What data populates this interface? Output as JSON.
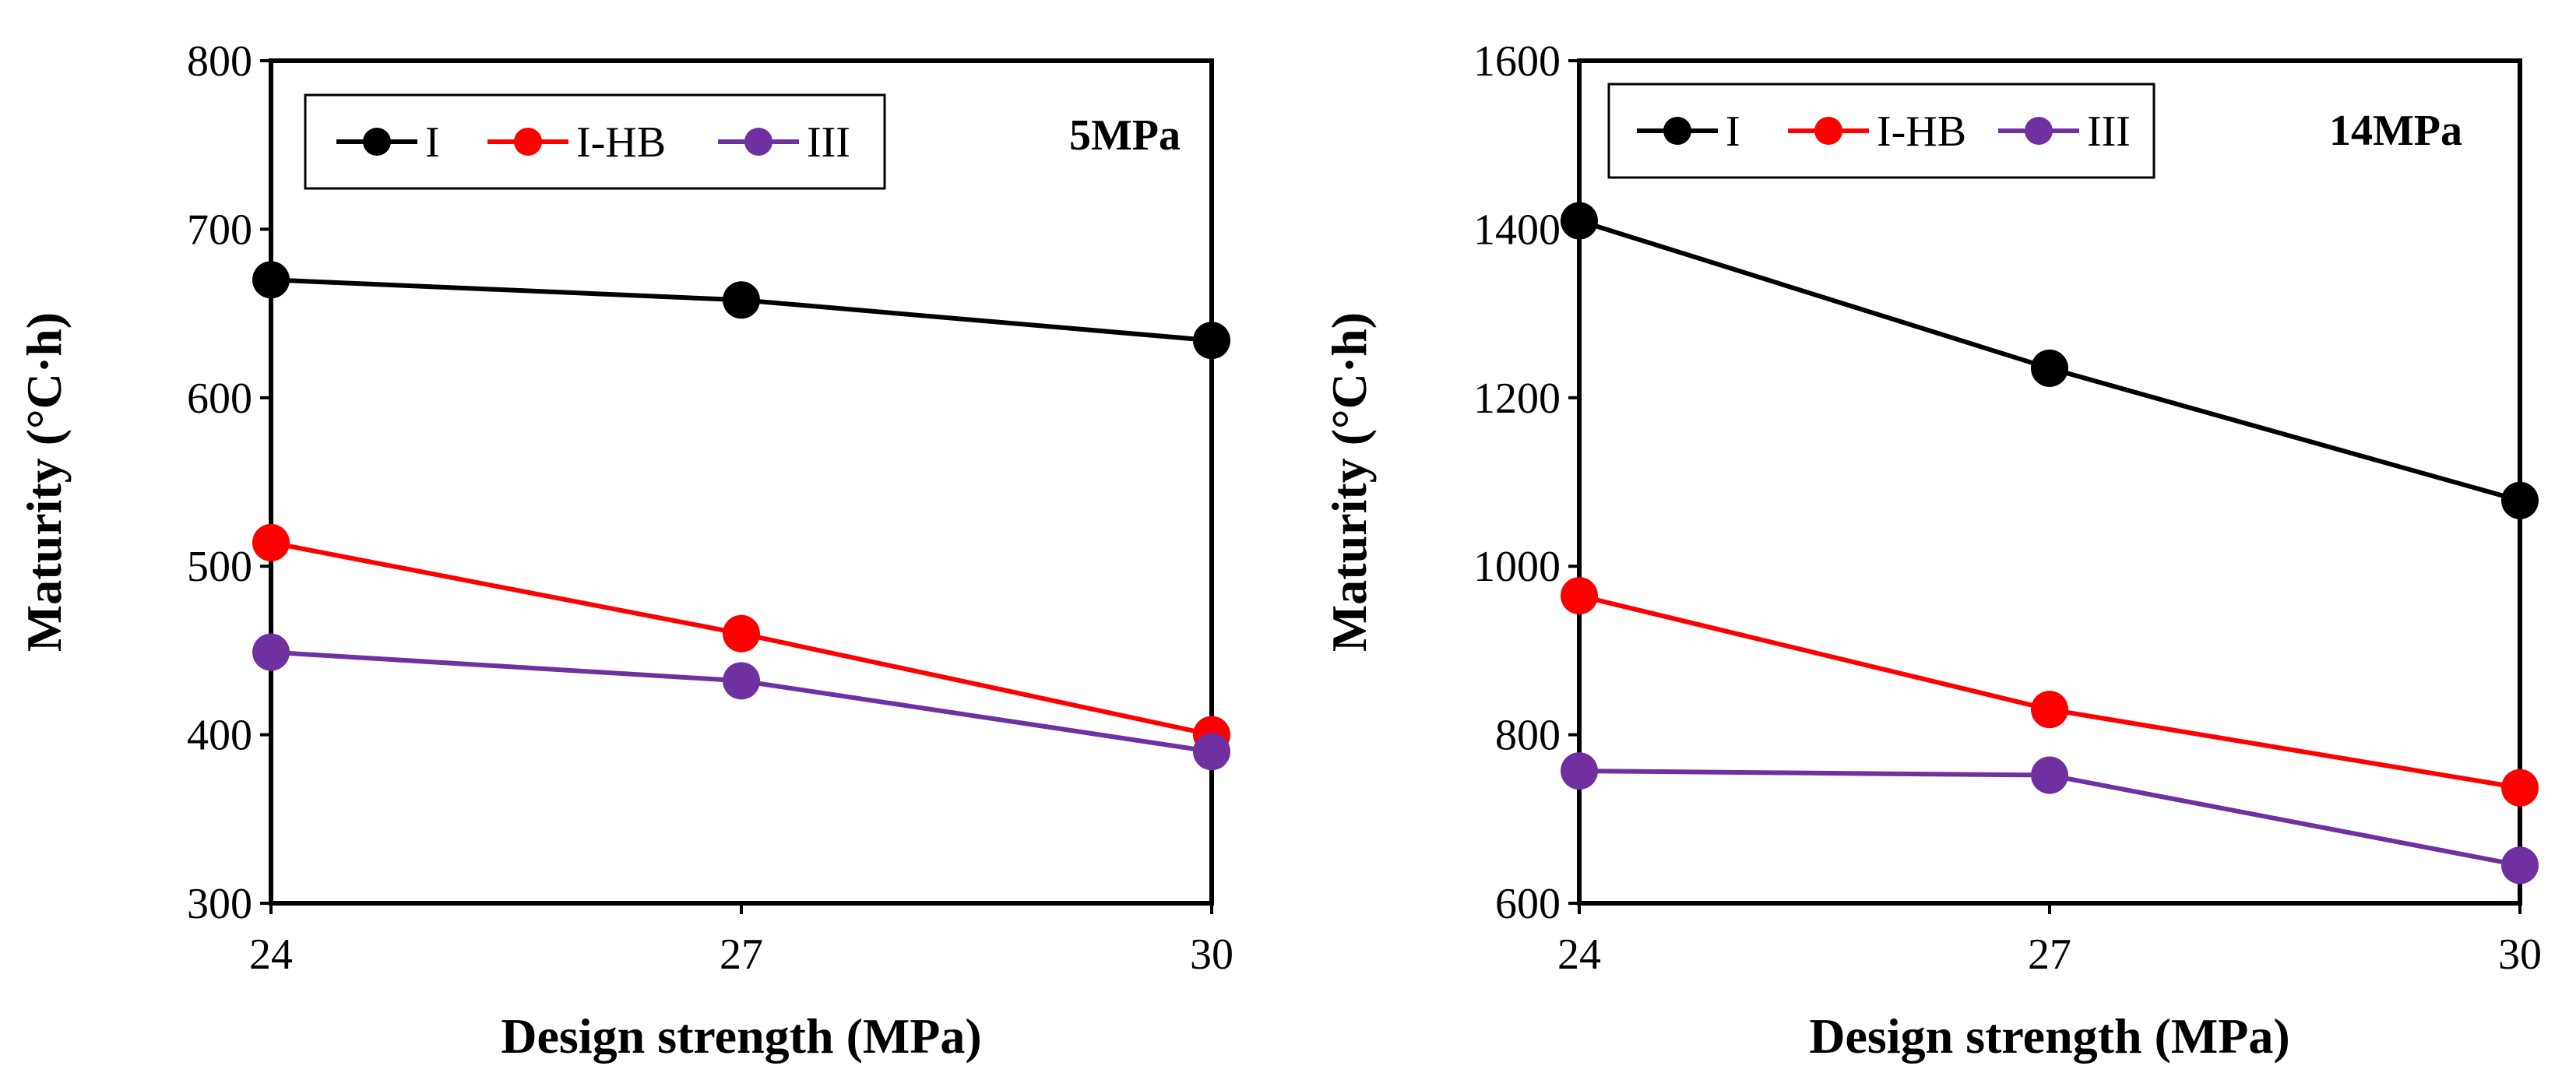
{
  "chart_data": [
    {
      "type": "line",
      "annotation": "5MPa",
      "xlabel": "Design strength (MPa)",
      "ylabel": "Maturity (°C·h)",
      "categories": [
        "24",
        "27",
        "30"
      ],
      "ylim": [
        300,
        800
      ],
      "yticks": [
        "300",
        "400",
        "500",
        "600",
        "700",
        "800"
      ],
      "grid": false,
      "legend_position": "top-left",
      "series": [
        {
          "name": "I",
          "color": "#000000",
          "values": [
            670,
            658,
            634
          ]
        },
        {
          "name": "I-HB",
          "color": "#ff0000",
          "values": [
            514,
            460,
            400
          ]
        },
        {
          "name": "III",
          "color": "#7030a0",
          "values": [
            449,
            432,
            390
          ]
        }
      ]
    },
    {
      "type": "line",
      "annotation": "14MPa",
      "xlabel": "Design strength (MPa)",
      "ylabel": "Maturity (°C·h)",
      "categories": [
        "24",
        "27",
        "30"
      ],
      "ylim": [
        600,
        1600
      ],
      "yticks": [
        "600",
        "800",
        "1000",
        "1200",
        "1400",
        "1600"
      ],
      "grid": false,
      "legend_position": "top-left",
      "series": [
        {
          "name": "I",
          "color": "#000000",
          "values": [
            1410,
            1235,
            1078
          ]
        },
        {
          "name": "I-HB",
          "color": "#ff0000",
          "values": [
            965,
            830,
            737
          ]
        },
        {
          "name": "III",
          "color": "#7030a0",
          "values": [
            757,
            752,
            645
          ]
        }
      ]
    }
  ]
}
